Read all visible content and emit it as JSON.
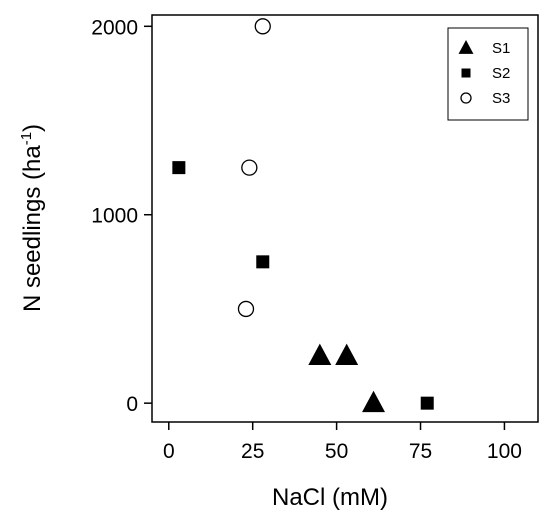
{
  "chart_data": {
    "type": "scatter",
    "title": "",
    "xlabel": "NaCl (mM)",
    "ylabel": "N seedlings (ha",
    "ylabel_sup": "-1",
    "ylabel_close": ")",
    "xlim": [
      -5,
      110
    ],
    "ylim": [
      -100,
      2060
    ],
    "xticks": [
      0,
      25,
      50,
      75,
      100
    ],
    "yticks": [
      0,
      1000,
      2000
    ],
    "grid": false,
    "legend_position": "top-right",
    "series": [
      {
        "name": "S1",
        "marker": "triangle",
        "color": "#000000",
        "points": [
          [
            45,
            250
          ],
          [
            53,
            250
          ],
          [
            61,
            0
          ]
        ]
      },
      {
        "name": "S2",
        "marker": "square",
        "color": "#000000",
        "points": [
          [
            3,
            1250
          ],
          [
            28,
            750
          ],
          [
            77,
            0
          ]
        ]
      },
      {
        "name": "S3",
        "marker": "circle-open",
        "color": "#000000",
        "points": [
          [
            28,
            2000
          ],
          [
            24,
            1250
          ],
          [
            23,
            500
          ]
        ]
      }
    ]
  }
}
